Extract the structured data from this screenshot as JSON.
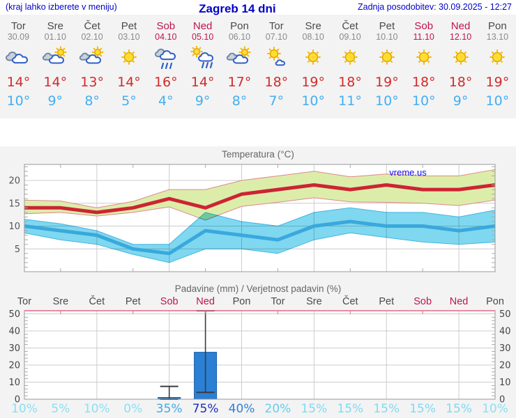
{
  "header": {
    "hint": "(kraj lahko izberete v meniju)",
    "title": "Zagreb 14 dni",
    "updated": "Zadnja posodobitev: 30.09.2025 - 12:27"
  },
  "watermark": "vreme.us",
  "colors": {
    "header_blue": "#0000cc",
    "weekend_red": "#c0134f",
    "tmax_red": "#d32a2a",
    "tmin_blue": "#45aeef",
    "line_red": "#cc2433",
    "line_blue": "#3aa8dd",
    "band_yellow": "#dcedaa",
    "band_yellow_edge": "#e08888",
    "band_blue": "#7fd8ef",
    "band_blue_edge": "#44b4e4",
    "bar_blue": "#2b80d5",
    "bar_edge": "#1a5ca6",
    "whisker": "#3c3c3c",
    "grid": "#cccccc",
    "border": "#999999",
    "pink_axis": "#e06888"
  },
  "forecast": {
    "days": [
      {
        "name": "Tor",
        "date": "30.09",
        "weekend": false,
        "icon": "cloudy",
        "tmax": "14°",
        "tmin": "10°"
      },
      {
        "name": "Sre",
        "date": "01.10",
        "weekend": false,
        "icon": "partly",
        "tmax": "14°",
        "tmin": "9°"
      },
      {
        "name": "Čet",
        "date": "02.10",
        "weekend": false,
        "icon": "partly",
        "tmax": "13°",
        "tmin": "8°"
      },
      {
        "name": "Pet",
        "date": "03.10",
        "weekend": false,
        "icon": "sunny",
        "tmax": "14°",
        "tmin": "5°"
      },
      {
        "name": "Sob",
        "date": "04.10",
        "weekend": true,
        "icon": "rain",
        "tmax": "16°",
        "tmin": "4°"
      },
      {
        "name": "Ned",
        "date": "05.10",
        "weekend": true,
        "icon": "sunrain",
        "tmax": "14°",
        "tmin": "9°"
      },
      {
        "name": "Pon",
        "date": "06.10",
        "weekend": false,
        "icon": "partly",
        "tmax": "17°",
        "tmin": "8°"
      },
      {
        "name": "Tor",
        "date": "07.10",
        "weekend": false,
        "icon": "mostlysunny",
        "tmax": "18°",
        "tmin": "7°"
      },
      {
        "name": "Sre",
        "date": "08.10",
        "weekend": false,
        "icon": "sunny",
        "tmax": "19°",
        "tmin": "10°"
      },
      {
        "name": "Čet",
        "date": "09.10",
        "weekend": false,
        "icon": "sunny",
        "tmax": "18°",
        "tmin": "11°"
      },
      {
        "name": "Pet",
        "date": "10.10",
        "weekend": false,
        "icon": "sunny",
        "tmax": "19°",
        "tmin": "10°"
      },
      {
        "name": "Sob",
        "date": "11.10",
        "weekend": true,
        "icon": "sunny",
        "tmax": "18°",
        "tmin": "10°"
      },
      {
        "name": "Ned",
        "date": "12.10",
        "weekend": true,
        "icon": "sunny",
        "tmax": "18°",
        "tmin": "9°"
      },
      {
        "name": "Pon",
        "date": "13.10",
        "weekend": false,
        "icon": "sunny",
        "tmax": "19°",
        "tmin": "10°"
      }
    ]
  },
  "chart_data": [
    {
      "type": "line",
      "title": "Temperatura (°C)",
      "ylabel": "°C",
      "ylim": [
        0,
        23.5
      ],
      "yticks": [
        5,
        10,
        15,
        20
      ],
      "grid": true,
      "x_count": 14,
      "series": [
        {
          "name": "tmax",
          "values": [
            14,
            14,
            13,
            14,
            16,
            14,
            17,
            18,
            19,
            18,
            19,
            18,
            18,
            19
          ]
        },
        {
          "name": "tmax_hi",
          "values": [
            15.7,
            15.5,
            14,
            15.4,
            18,
            18,
            20,
            21,
            22,
            20.8,
            21.4,
            21,
            21,
            22.4
          ]
        },
        {
          "name": "tmax_lo",
          "values": [
            12.7,
            13,
            12.2,
            13,
            14.2,
            11.3,
            14.3,
            15.2,
            16.2,
            15.3,
            15.2,
            15,
            14.5,
            15.7
          ]
        },
        {
          "name": "tmin",
          "values": [
            10,
            9,
            8,
            5,
            4,
            9,
            8,
            7,
            10,
            11,
            10,
            10,
            9,
            10
          ]
        },
        {
          "name": "tmin_hi",
          "values": [
            11.5,
            10.5,
            9,
            6,
            6,
            13,
            11,
            10,
            13,
            14,
            13,
            13,
            12,
            13.5
          ]
        },
        {
          "name": "tmin_lo",
          "values": [
            8.5,
            7,
            6,
            3.8,
            2,
            5,
            5,
            4,
            7,
            8.5,
            7.5,
            6.5,
            6,
            6.5
          ]
        }
      ]
    },
    {
      "type": "bar",
      "title": "Padavine (mm) / Verjetnost padavin (%)",
      "categories": [
        "Tor",
        "Sre",
        "Čet",
        "Pet",
        "Sob",
        "Ned",
        "Pon",
        "Tor",
        "Sre",
        "Čet",
        "Pet",
        "Sob",
        "Ned",
        "Pon"
      ],
      "ylim": [
        0,
        52
      ],
      "yticks": [
        0,
        10,
        20,
        30,
        40,
        50
      ],
      "grid": true,
      "values": [
        0,
        0,
        0,
        0,
        1,
        27.5,
        0,
        0,
        0,
        0,
        0,
        0,
        0,
        0
      ],
      "whisker_low": [
        null,
        null,
        null,
        null,
        0,
        4,
        null,
        null,
        null,
        null,
        null,
        null,
        null,
        null
      ],
      "whisker_high": [
        null,
        null,
        null,
        null,
        7.5,
        52,
        null,
        null,
        null,
        null,
        null,
        null,
        null,
        null
      ],
      "probabilities": [
        "10%",
        "5%",
        "10%",
        "0%",
        "35%",
        "75%",
        "40%",
        "20%",
        "15%",
        "15%",
        "15%",
        "15%",
        "15%",
        "10%"
      ],
      "prob_colors": [
        "#8ae0f4",
        "#8ae0f4",
        "#8ae0f4",
        "#8ae0f4",
        "#3fa9e8",
        "#1d2cc0",
        "#2f7fd8",
        "#63cdf0",
        "#7fdaf2",
        "#7fdaf2",
        "#7fdaf2",
        "#7fdaf2",
        "#7fdaf2",
        "#8ae0f4"
      ]
    }
  ]
}
